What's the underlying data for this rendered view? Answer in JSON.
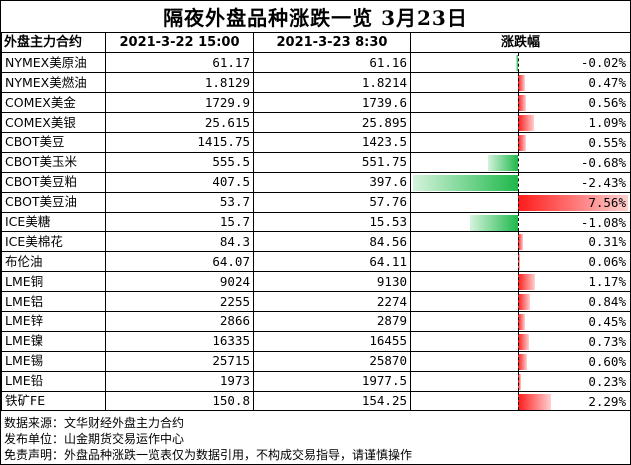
{
  "title": "隔夜外盘品种涨跌一览  3月23日",
  "headers": {
    "name": "外盘主力合约",
    "date1": "2021-3-22 15:00",
    "date2": "2021-3-23 8:30",
    "change": "涨跌幅"
  },
  "colors": {
    "up": "#ff1a1a",
    "down": "#1eb84a"
  },
  "scale_max_pct": 7.56,
  "rows": [
    {
      "name": "NYMEX美原油",
      "v1": "61.17",
      "v2": "61.16",
      "chg": "-0.02%",
      "pct": -0.02
    },
    {
      "name": "NYMEX美燃油",
      "v1": "1.8129",
      "v2": "1.8214",
      "chg": "0.47%",
      "pct": 0.47
    },
    {
      "name": "COMEX美金",
      "v1": "1729.9",
      "v2": "1739.6",
      "chg": "0.56%",
      "pct": 0.56
    },
    {
      "name": "COMEX美银",
      "v1": "25.615",
      "v2": "25.895",
      "chg": "1.09%",
      "pct": 1.09
    },
    {
      "name": "CBOT美豆",
      "v1": "1415.75",
      "v2": "1423.5",
      "chg": "0.55%",
      "pct": 0.55
    },
    {
      "name": "CBOT美玉米",
      "v1": "555.5",
      "v2": "551.75",
      "chg": "-0.68%",
      "pct": -0.68
    },
    {
      "name": "CBOT美豆粕",
      "v1": "407.5",
      "v2": "397.6",
      "chg": "-2.43%",
      "pct": -2.43
    },
    {
      "name": "CBOT美豆油",
      "v1": "53.7",
      "v2": "57.76",
      "chg": "7.56%",
      "pct": 7.56
    },
    {
      "name": "ICE美糖",
      "v1": "15.7",
      "v2": "15.53",
      "chg": "-1.08%",
      "pct": -1.08
    },
    {
      "name": "ICE美棉花",
      "v1": "84.3",
      "v2": "84.56",
      "chg": "0.31%",
      "pct": 0.31
    },
    {
      "name": "布伦油",
      "v1": "64.07",
      "v2": "64.11",
      "chg": "0.06%",
      "pct": 0.06
    },
    {
      "name": "LME铜",
      "v1": "9024",
      "v2": "9130",
      "chg": "1.17%",
      "pct": 1.17
    },
    {
      "name": "LME铝",
      "v1": "2255",
      "v2": "2274",
      "chg": "0.84%",
      "pct": 0.84
    },
    {
      "name": "LME锌",
      "v1": "2866",
      "v2": "2879",
      "chg": "0.45%",
      "pct": 0.45
    },
    {
      "name": "LME镍",
      "v1": "16335",
      "v2": "16455",
      "chg": "0.73%",
      "pct": 0.73
    },
    {
      "name": "LME锡",
      "v1": "25715",
      "v2": "25870",
      "chg": "0.60%",
      "pct": 0.6
    },
    {
      "name": "LME铅",
      "v1": "1973",
      "v2": "1977.5",
      "chg": "0.23%",
      "pct": 0.23
    },
    {
      "name": "铁矿FE",
      "v1": "150.8",
      "v2": "154.25",
      "chg": "2.29%",
      "pct": 2.29
    }
  ],
  "footer": {
    "source": "数据来源：文华财经外盘主力合约",
    "publisher": "发布单位：山金期货交易运作中心",
    "disclaimer": "免责声明：外盘品种涨跌一览表仅为数据引用，不构成交易指导，请谨慎操作"
  }
}
